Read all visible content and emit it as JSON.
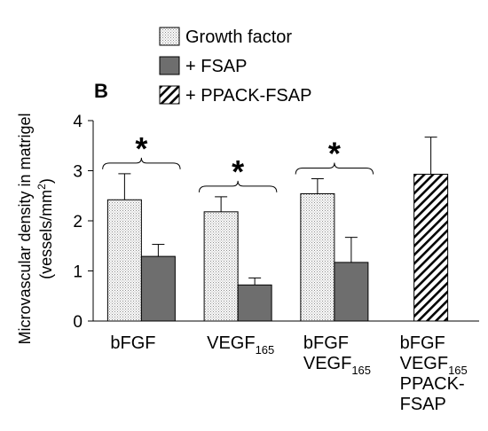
{
  "chart_data": {
    "type": "bar",
    "panel_label": "B",
    "ylabel": {
      "line1": "Microvascular density in matrigel",
      "line2_prefix": "(vessels/mm",
      "line2_sup": "2",
      "line2_suffix": ")"
    },
    "ylim": [
      0,
      4
    ],
    "yticks": [
      "0",
      "1",
      "2",
      "3",
      "4"
    ],
    "grid": false,
    "legend_placement": "top",
    "legend": [
      {
        "label": "Growth factor",
        "pattern": "dots"
      },
      {
        "label": "+ FSAP",
        "pattern": "solid-gray"
      },
      {
        "label": "+ PPACK-FSAP",
        "pattern": "hatch"
      }
    ],
    "categories": [
      {
        "lines": [
          {
            "text": "bFGF",
            "sub": ""
          }
        ]
      },
      {
        "lines": [
          {
            "text": "VEGF",
            "sub": "165"
          }
        ]
      },
      {
        "lines": [
          {
            "text": "bFGF",
            "sub": ""
          },
          {
            "text": "VEGF",
            "sub": "165"
          }
        ]
      },
      {
        "lines": [
          {
            "text": "bFGF",
            "sub": ""
          },
          {
            "text": "VEGF",
            "sub": "165"
          },
          {
            "text": "PPACK-",
            "sub": ""
          },
          {
            "text": "FSAP",
            "sub": ""
          }
        ]
      }
    ],
    "series": [
      {
        "name": "Growth factor",
        "pattern": "dots",
        "values": [
          2.42,
          2.18,
          2.54,
          null
        ],
        "errors": [
          0.52,
          0.3,
          0.3,
          null
        ]
      },
      {
        "name": "+ FSAP",
        "pattern": "solid-gray",
        "values": [
          1.29,
          0.72,
          1.17,
          null
        ],
        "errors": [
          0.24,
          0.14,
          0.5,
          null
        ]
      },
      {
        "name": "+ PPACK-FSAP",
        "pattern": "hatch",
        "values": [
          null,
          null,
          null,
          2.93
        ],
        "errors": [
          null,
          null,
          null,
          0.74
        ]
      }
    ],
    "significance": [
      {
        "category_index": 0,
        "symbol": "*"
      },
      {
        "category_index": 1,
        "symbol": "*"
      },
      {
        "category_index": 2,
        "symbol": "*"
      }
    ]
  }
}
